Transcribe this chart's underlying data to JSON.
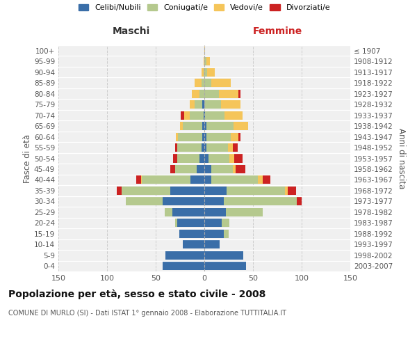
{
  "age_groups": [
    "0-4",
    "5-9",
    "10-14",
    "15-19",
    "20-24",
    "25-29",
    "30-34",
    "35-39",
    "40-44",
    "45-49",
    "50-54",
    "55-59",
    "60-64",
    "65-69",
    "70-74",
    "75-79",
    "80-84",
    "85-89",
    "90-94",
    "95-99",
    "100+"
  ],
  "birth_years": [
    "2003-2007",
    "1998-2002",
    "1993-1997",
    "1988-1992",
    "1983-1987",
    "1978-1982",
    "1973-1977",
    "1968-1972",
    "1963-1967",
    "1958-1962",
    "1953-1957",
    "1948-1952",
    "1943-1947",
    "1938-1942",
    "1933-1937",
    "1928-1932",
    "1923-1927",
    "1918-1922",
    "1913-1917",
    "1908-1912",
    "≤ 1907"
  ],
  "colors": {
    "celibi": "#3a6ea8",
    "coniugati": "#b5c98e",
    "vedovi": "#f5c55a",
    "divorziati": "#cc2222"
  },
  "maschi": {
    "celibi": [
      43,
      40,
      22,
      26,
      28,
      33,
      43,
      35,
      14,
      8,
      5,
      3,
      2,
      2,
      1,
      2,
      0,
      0,
      0,
      0,
      0
    ],
    "coniugati": [
      0,
      0,
      0,
      0,
      2,
      8,
      38,
      50,
      50,
      22,
      23,
      25,
      25,
      20,
      14,
      8,
      5,
      3,
      1,
      0,
      0
    ],
    "vedovi": [
      0,
      0,
      0,
      0,
      0,
      0,
      0,
      0,
      1,
      0,
      0,
      0,
      2,
      3,
      6,
      5,
      8,
      7,
      2,
      1,
      0
    ],
    "divorziati": [
      0,
      0,
      0,
      0,
      0,
      0,
      0,
      5,
      5,
      5,
      4,
      2,
      0,
      0,
      3,
      0,
      0,
      0,
      0,
      0,
      0
    ]
  },
  "femmine": {
    "celibi": [
      43,
      40,
      16,
      20,
      18,
      22,
      20,
      23,
      7,
      7,
      4,
      2,
      2,
      2,
      1,
      0,
      0,
      0,
      0,
      0,
      0
    ],
    "coniugati": [
      0,
      0,
      0,
      5,
      8,
      38,
      75,
      60,
      48,
      22,
      22,
      22,
      25,
      28,
      20,
      17,
      15,
      7,
      3,
      2,
      0
    ],
    "vedovi": [
      0,
      0,
      0,
      0,
      0,
      0,
      0,
      3,
      5,
      3,
      5,
      5,
      8,
      15,
      18,
      20,
      20,
      20,
      8,
      4,
      1
    ],
    "divorziati": [
      0,
      0,
      0,
      0,
      0,
      0,
      5,
      8,
      8,
      10,
      8,
      5,
      2,
      0,
      0,
      0,
      2,
      0,
      0,
      0,
      0
    ]
  },
  "xlim": 150,
  "title": "Popolazione per età, sesso e stato civile - 2008",
  "subtitle": "COMUNE DI MURLO (SI) - Dati ISTAT 1° gennaio 2008 - Elaborazione TUTTITALIA.IT",
  "ylabel_left": "Fasce di età",
  "ylabel_right": "Anni di nascita",
  "label_maschi": "Maschi",
  "label_femmine": "Femmine",
  "legend": [
    "Celibi/Nubili",
    "Coniugati/e",
    "Vedovi/e",
    "Divorziati/e"
  ],
  "bg_color": "#f0f0f0",
  "grid_color": "#cccccc"
}
